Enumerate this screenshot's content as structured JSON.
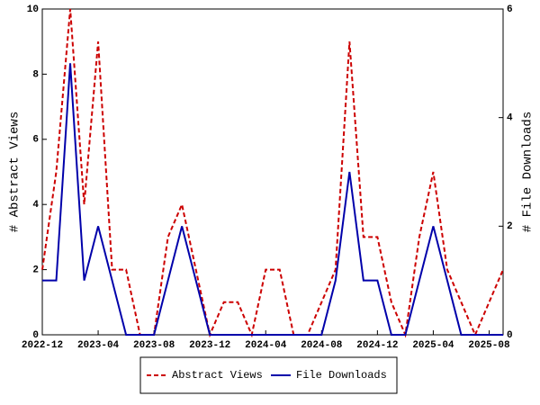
{
  "chart_data": {
    "type": "line",
    "categories": [
      "2022-12",
      null,
      null,
      null,
      "2023-04",
      null,
      null,
      null,
      "2023-08",
      null,
      null,
      null,
      "2023-12",
      null,
      null,
      null,
      "2024-04",
      null,
      null,
      null,
      "2024-08",
      null,
      null,
      null,
      "2024-12",
      null,
      null,
      null,
      "2025-04",
      null,
      null,
      null,
      "2025-08",
      null
    ],
    "ylabel": "# Abstract Views",
    "y2label": "# File Downloads",
    "ylim": [
      0,
      10
    ],
    "yticks": [
      0,
      2,
      4,
      6,
      8,
      10
    ],
    "y2lim": [
      0,
      6
    ],
    "y2ticks": [
      0,
      2,
      4,
      6
    ],
    "legend": "bottom",
    "series": [
      {
        "name": "Abstract Views",
        "color": "#cc0000",
        "dashed": true,
        "values": [
          2,
          5,
          10,
          4,
          9,
          2,
          2,
          0,
          0,
          3,
          4,
          2,
          0,
          1,
          1,
          0,
          2,
          2,
          0,
          0,
          1,
          2,
          9,
          3,
          3,
          1,
          0,
          3,
          5,
          2,
          1,
          0,
          1,
          2
        ]
      },
      {
        "name": "File Downloads",
        "color": "#0000aa",
        "axis": "y2",
        "values": [
          1,
          1,
          5,
          1,
          2,
          1,
          0,
          0,
          0,
          1,
          2,
          1,
          0,
          0,
          0,
          0,
          0,
          0,
          0,
          0,
          0,
          1,
          3,
          1,
          1,
          0,
          0,
          1,
          2,
          1,
          0,
          0,
          0,
          0
        ]
      }
    ]
  }
}
